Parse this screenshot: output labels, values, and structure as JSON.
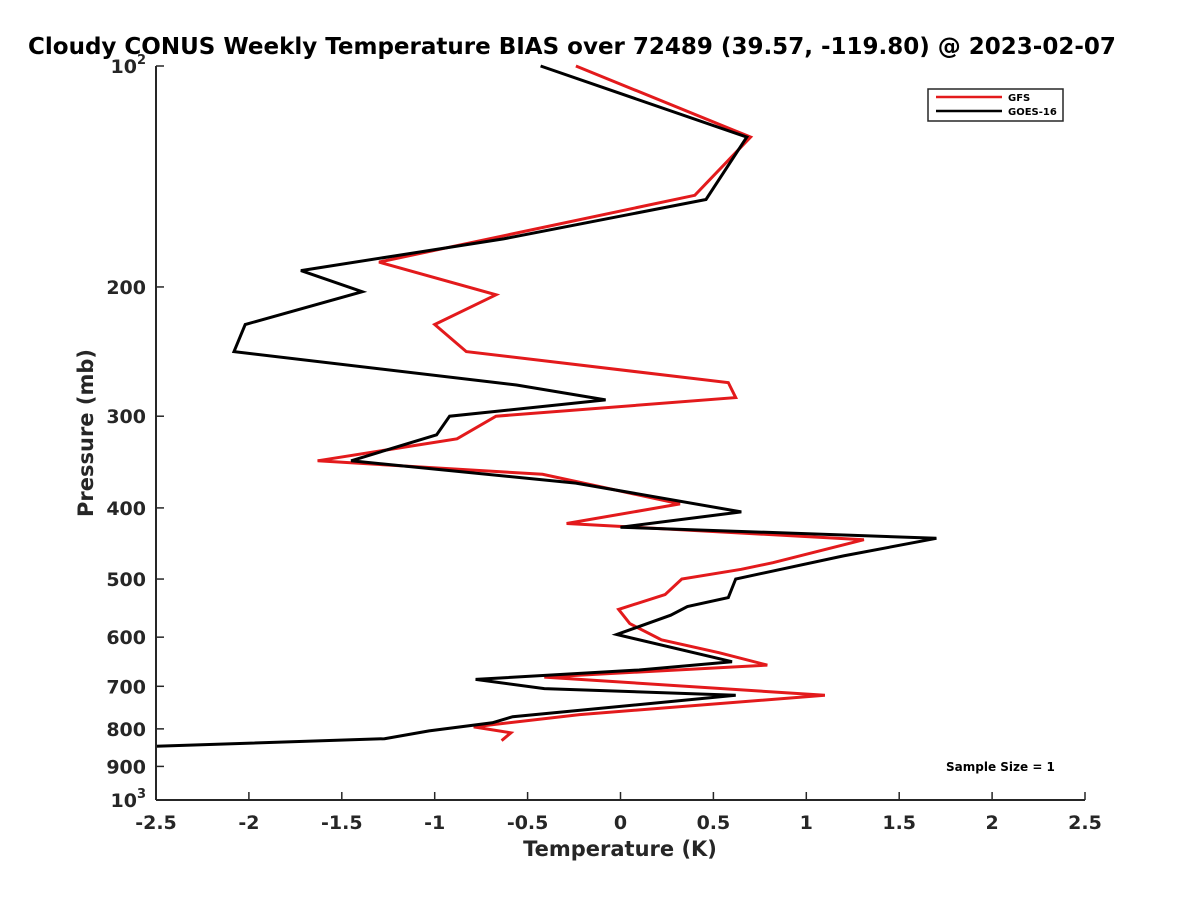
{
  "chart_data": {
    "type": "line",
    "title": "Cloudy CONUS Weekly Temperature BIAS over 72489 (39.57, -119.80) @ 2023-02-07",
    "xlabel": "Temperature (K)",
    "ylabel": "Pressure (mb)",
    "xlim": [
      -2.5,
      2.5
    ],
    "ylim": [
      1000,
      100
    ],
    "y_scale": "log",
    "y_reversed": true,
    "x_ticks": [
      "-2.5",
      "-2",
      "-1.5",
      "-1",
      "-0.5",
      "0",
      "0.5",
      "1",
      "1.5",
      "2",
      "2.5"
    ],
    "y_ticks": [
      {
        "value": 100,
        "label": "10",
        "sup": "2"
      },
      {
        "value": 200,
        "label": "200",
        "sup": ""
      },
      {
        "value": 300,
        "label": "300",
        "sup": ""
      },
      {
        "value": 400,
        "label": "400",
        "sup": ""
      },
      {
        "value": 500,
        "label": "500",
        "sup": ""
      },
      {
        "value": 600,
        "label": "600",
        "sup": ""
      },
      {
        "value": 700,
        "label": "700",
        "sup": ""
      },
      {
        "value": 800,
        "label": "800",
        "sup": ""
      },
      {
        "value": 900,
        "label": "900",
        "sup": ""
      },
      {
        "value": 1000,
        "label": "10",
        "sup": "3"
      }
    ],
    "legend_position": "top-right",
    "annotation": "Sample Size = 1",
    "series": [
      {
        "name": "GFS",
        "color": "#e31a1c",
        "points": [
          [
            -0.24,
            100
          ],
          [
            0.7,
            125
          ],
          [
            0.4,
            150
          ],
          [
            -1.3,
            185
          ],
          [
            -0.67,
            205
          ],
          [
            -1.0,
            225
          ],
          [
            -0.83,
            245
          ],
          [
            0.58,
            270
          ],
          [
            0.62,
            283
          ],
          [
            -0.67,
            300
          ],
          [
            -0.88,
            322
          ],
          [
            -1.63,
            345
          ],
          [
            -0.42,
            360
          ],
          [
            0.32,
            395
          ],
          [
            -0.29,
            420
          ],
          [
            1.31,
            442
          ],
          [
            0.82,
            475
          ],
          [
            0.65,
            485
          ],
          [
            0.33,
            500
          ],
          [
            0.24,
            525
          ],
          [
            -0.01,
            550
          ],
          [
            0.05,
            575
          ],
          [
            0.22,
            605
          ],
          [
            0.53,
            630
          ],
          [
            0.79,
            655
          ],
          [
            -0.41,
            680
          ],
          [
            1.1,
            720
          ],
          [
            -0.22,
            765
          ],
          [
            -0.79,
            795
          ],
          [
            -0.59,
            810
          ],
          [
            -0.64,
            830
          ]
        ]
      },
      {
        "name": "GOES-16",
        "color": "#000000",
        "points": [
          [
            -0.43,
            100
          ],
          [
            0.68,
            125
          ],
          [
            0.46,
            152
          ],
          [
            -0.63,
            172
          ],
          [
            -1.72,
            190
          ],
          [
            -1.39,
            203
          ],
          [
            -2.02,
            225
          ],
          [
            -2.08,
            245
          ],
          [
            -0.56,
            272
          ],
          [
            -0.08,
            285
          ],
          [
            -0.92,
            300
          ],
          [
            -0.99,
            318
          ],
          [
            -1.45,
            345
          ],
          [
            -0.24,
            370
          ],
          [
            0.65,
            405
          ],
          [
            0.0,
            425
          ],
          [
            1.7,
            440
          ],
          [
            1.2,
            465
          ],
          [
            0.62,
            500
          ],
          [
            0.58,
            530
          ],
          [
            0.36,
            545
          ],
          [
            0.27,
            560
          ],
          [
            -0.02,
            595
          ],
          [
            0.6,
            648
          ],
          [
            0.1,
            665
          ],
          [
            -0.78,
            685
          ],
          [
            -0.41,
            705
          ],
          [
            0.62,
            720
          ],
          [
            -0.58,
            770
          ],
          [
            -0.69,
            785
          ],
          [
            -1.03,
            805
          ],
          [
            -1.27,
            825
          ],
          [
            -2.5,
            845
          ]
        ]
      }
    ]
  }
}
